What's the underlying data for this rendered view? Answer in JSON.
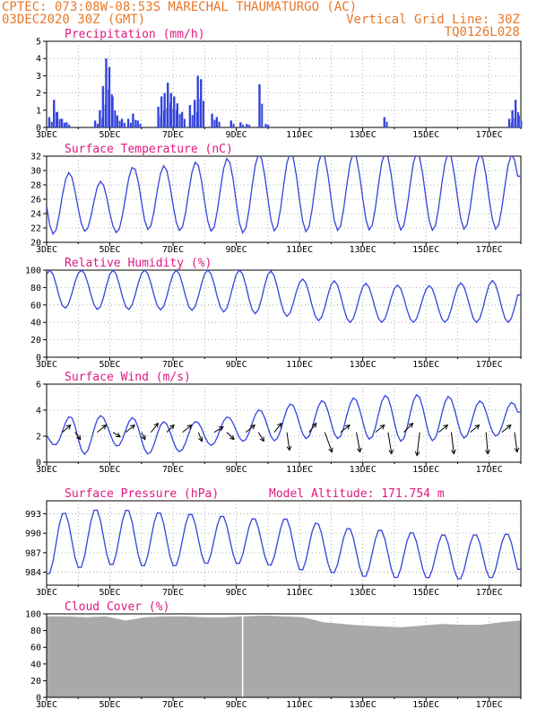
{
  "header": {
    "line1": "CPTEC:   073:08W-08:53S  MARECHAL THAUMATURGO (AC)",
    "line2_left": "03DEC2020 30Z (GMT)",
    "line2_right": "Vertical Grid Line: 30Z",
    "line3_right": "TQ0126L028",
    "altitude": "Model Altitude: 171.754 m"
  },
  "x_ticks": [
    "3DEC",
    "5DEC",
    "7DEC",
    "9DEC",
    "11DEC",
    "13DEC",
    "15DEC",
    "17DEC"
  ],
  "colors": {
    "series": "#3344dd",
    "title": "#e0177f",
    "header": "#e8782a",
    "cloud": "#a9a9a9"
  },
  "chart_data": [
    {
      "type": "bar",
      "title": "Precipitation (mm/h)",
      "ylim": [
        0,
        5
      ],
      "yticks": [
        "0",
        "1",
        "2",
        "3",
        "4",
        "5"
      ],
      "x_days": [
        0,
        15
      ],
      "hourly_samples": "approx",
      "events": [
        {
          "day": 0.05,
          "value": 0.6
        },
        {
          "day": 0.2,
          "value": 1.6
        },
        {
          "day": 0.3,
          "value": 0.9
        },
        {
          "day": 0.45,
          "value": 0.5
        },
        {
          "day": 0.6,
          "value": 0.3
        },
        {
          "day": 1.5,
          "value": 0.4
        },
        {
          "day": 1.65,
          "value": 1.0
        },
        {
          "day": 1.75,
          "value": 2.4
        },
        {
          "day": 1.85,
          "value": 4.0
        },
        {
          "day": 1.95,
          "value": 3.5
        },
        {
          "day": 2.05,
          "value": 1.8
        },
        {
          "day": 2.2,
          "value": 0.7
        },
        {
          "day": 2.35,
          "value": 0.5
        },
        {
          "day": 2.55,
          "value": 0.5
        },
        {
          "day": 2.7,
          "value": 0.8
        },
        {
          "day": 2.85,
          "value": 0.4
        },
        {
          "day": 3.5,
          "value": 1.2
        },
        {
          "day": 3.6,
          "value": 1.8
        },
        {
          "day": 3.7,
          "value": 2.0
        },
        {
          "day": 3.8,
          "value": 2.6
        },
        {
          "day": 3.9,
          "value": 2.0
        },
        {
          "day": 4.0,
          "value": 1.8
        },
        {
          "day": 4.1,
          "value": 1.4
        },
        {
          "day": 4.25,
          "value": 0.9
        },
        {
          "day": 4.5,
          "value": 1.3
        },
        {
          "day": 4.65,
          "value": 1.6
        },
        {
          "day": 4.75,
          "value": 3.0
        },
        {
          "day": 4.85,
          "value": 2.8
        },
        {
          "day": 5.2,
          "value": 0.8
        },
        {
          "day": 5.35,
          "value": 0.6
        },
        {
          "day": 5.8,
          "value": 0.4
        },
        {
          "day": 6.1,
          "value": 0.3
        },
        {
          "day": 6.3,
          "value": 0.2
        },
        {
          "day": 6.7,
          "value": 2.5
        },
        {
          "day": 6.9,
          "value": 0.2
        },
        {
          "day": 10.65,
          "value": 0.6
        },
        {
          "day": 14.6,
          "value": 0.5
        },
        {
          "day": 14.7,
          "value": 1.0
        },
        {
          "day": 14.8,
          "value": 1.6
        },
        {
          "day": 14.9,
          "value": 0.7
        }
      ]
    },
    {
      "type": "line",
      "title": "Surface Temperature (nC)",
      "ylim": [
        20,
        32
      ],
      "yticks": [
        "20",
        "22",
        "24",
        "26",
        "28",
        "30",
        "32"
      ],
      "daily_max": [
        31.0,
        29.2,
        28.2,
        31.4,
        30.4,
        31.5,
        31.8,
        32.5,
        32.5,
        32.5,
        32.5,
        32.5,
        32.5,
        32.5,
        32.2,
        30.8
      ],
      "daily_min": [
        21.0,
        21.6,
        21.2,
        21.8,
        21.6,
        21.6,
        21.2,
        21.6,
        21.4,
        21.6,
        21.7,
        21.7,
        21.6,
        21.8,
        21.8,
        21.8
      ]
    },
    {
      "type": "line",
      "title": "Relative Humidity (%)",
      "ylim": [
        0,
        100
      ],
      "yticks": [
        "0",
        "20",
        "40",
        "60",
        "80",
        "100"
      ],
      "daily_max": [
        100,
        100,
        100,
        100,
        100,
        100,
        100,
        100,
        90,
        88,
        85,
        83,
        82,
        85,
        88,
        92
      ],
      "daily_min": [
        48,
        62,
        50,
        58,
        52,
        55,
        50,
        50,
        45,
        40,
        40,
        40,
        40,
        40,
        40,
        60
      ]
    },
    {
      "type": "line",
      "title": "Surface Wind (m/s)",
      "ylim": [
        0,
        6
      ],
      "yticks": [
        "0",
        "2",
        "4",
        "6"
      ],
      "daily_max": [
        2.8,
        3.8,
        3.5,
        3.4,
        3.0,
        3.2,
        3.6,
        4.2,
        4.6,
        4.8,
        5.0,
        5.2,
        5.2,
        5.0,
        4.6,
        4.2
      ],
      "daily_min": [
        1.6,
        0.4,
        1.4,
        0.6,
        0.7,
        1.2,
        1.6,
        1.6,
        1.8,
        1.8,
        1.8,
        1.6,
        1.6,
        1.8,
        2.0,
        2.2
      ],
      "arrows": [
        {
          "day": 0.5,
          "dx": 9,
          "dy": -8
        },
        {
          "day": 0.9,
          "dx": 6,
          "dy": 8
        },
        {
          "day": 1.6,
          "dx": 10,
          "dy": -8
        },
        {
          "day": 2.1,
          "dx": 8,
          "dy": 5
        },
        {
          "day": 2.5,
          "dx": 10,
          "dy": -8
        },
        {
          "day": 3.0,
          "dx": 4,
          "dy": 8
        },
        {
          "day": 3.3,
          "dx": 8,
          "dy": -10
        },
        {
          "day": 3.8,
          "dx": 8,
          "dy": -8
        },
        {
          "day": 4.3,
          "dx": 10,
          "dy": -8
        },
        {
          "day": 4.8,
          "dx": 4,
          "dy": 10
        },
        {
          "day": 5.3,
          "dx": 10,
          "dy": -6
        },
        {
          "day": 5.7,
          "dx": 8,
          "dy": 8
        },
        {
          "day": 6.3,
          "dx": 10,
          "dy": -8
        },
        {
          "day": 6.7,
          "dx": 6,
          "dy": 10
        },
        {
          "day": 7.2,
          "dx": 8,
          "dy": -10
        },
        {
          "day": 7.6,
          "dx": 3,
          "dy": 20
        },
        {
          "day": 8.3,
          "dx": 8,
          "dy": -10
        },
        {
          "day": 8.8,
          "dx": 8,
          "dy": 22
        },
        {
          "day": 9.3,
          "dx": 10,
          "dy": -8
        },
        {
          "day": 9.8,
          "dx": 4,
          "dy": 22
        },
        {
          "day": 10.4,
          "dx": 10,
          "dy": -8
        },
        {
          "day": 10.8,
          "dx": 4,
          "dy": 24
        },
        {
          "day": 11.3,
          "dx": 10,
          "dy": -10
        },
        {
          "day": 11.8,
          "dx": -3,
          "dy": 26
        },
        {
          "day": 12.4,
          "dx": 10,
          "dy": -8
        },
        {
          "day": 12.8,
          "dx": 3,
          "dy": 24
        },
        {
          "day": 13.4,
          "dx": 10,
          "dy": -8
        },
        {
          "day": 13.9,
          "dx": 2,
          "dy": 24
        },
        {
          "day": 14.4,
          "dx": 10,
          "dy": -8
        },
        {
          "day": 14.8,
          "dx": 3,
          "dy": 22
        }
      ]
    },
    {
      "type": "line",
      "title": "Surface Pressure (hPa)",
      "ylim": [
        982,
        995
      ],
      "yticks": [
        "984",
        "987",
        "990",
        "993"
      ],
      "daily_max": [
        993.0,
        993.5,
        994.0,
        993.5,
        993.2,
        993.0,
        992.6,
        992.2,
        992.5,
        991.0,
        990.8,
        990.5,
        990.0,
        989.8,
        990.0,
        990.0
      ],
      "daily_min": [
        983.5,
        984.5,
        985.0,
        984.8,
        984.8,
        985.2,
        985.2,
        985.0,
        984.2,
        983.8,
        983.2,
        983.0,
        983.0,
        982.8,
        983.0,
        983.2
      ]
    },
    {
      "type": "area",
      "title": "Cloud Cover (%)",
      "ylim": [
        0,
        100
      ],
      "yticks": [
        "0",
        "20",
        "40",
        "60",
        "80",
        "100"
      ],
      "approx_values": [
        97,
        97,
        96,
        97,
        92,
        96,
        97,
        97,
        96,
        96,
        97,
        98,
        97,
        96,
        90,
        88,
        86,
        85,
        84,
        86,
        88,
        87,
        87,
        90,
        92
      ],
      "gap_day": 6.2
    }
  ]
}
